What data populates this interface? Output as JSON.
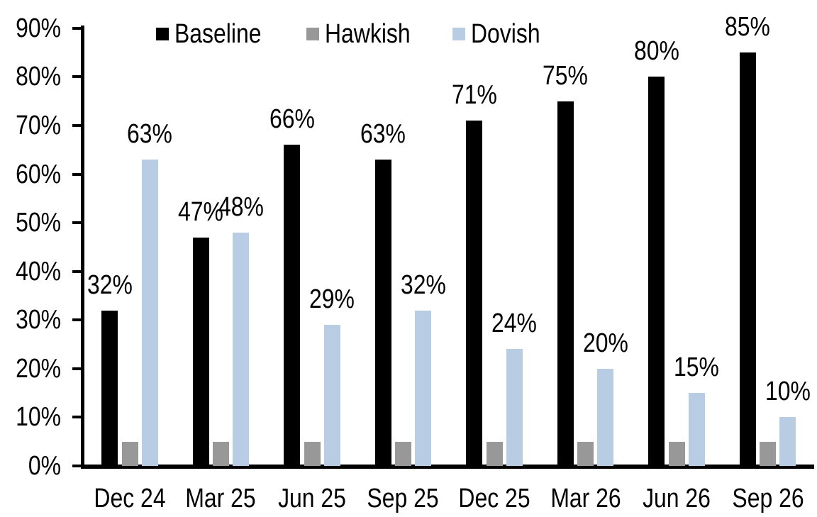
{
  "chart_data": {
    "type": "bar",
    "title": "",
    "xlabel": "",
    "ylabel": "",
    "categories": [
      "Dec 24",
      "Mar 25",
      "Jun 25",
      "Sep 25",
      "Dec 25",
      "Mar 26",
      "Jun 26",
      "Sep 26"
    ],
    "series": [
      {
        "name": "Baseline",
        "color": "#000000",
        "values": [
          32,
          47,
          66,
          63,
          71,
          75,
          80,
          85
        ],
        "labels": [
          "32%",
          "47%",
          "66%",
          "63%",
          "71%",
          "75%",
          "80%",
          "85%"
        ]
      },
      {
        "name": "Hawkish",
        "color": "#989898",
        "values": [
          5,
          5,
          5,
          5,
          5,
          5,
          5,
          5
        ],
        "labels": null
      },
      {
        "name": "Dovish",
        "color": "#B8CCE4",
        "values": [
          63,
          48,
          29,
          32,
          24,
          20,
          15,
          10
        ],
        "labels": [
          "63%",
          "48%",
          "29%",
          "32%",
          "24%",
          "20%",
          "15%",
          "10%"
        ]
      }
    ],
    "ylim": [
      0,
      90
    ],
    "yticks": [
      "0%",
      "10%",
      "20%",
      "30%",
      "40%",
      "50%",
      "60%",
      "70%",
      "80%",
      "90%"
    ],
    "grid": false,
    "legend_position": "top",
    "axis_color": "#000000",
    "background_color": "#ffffff"
  }
}
